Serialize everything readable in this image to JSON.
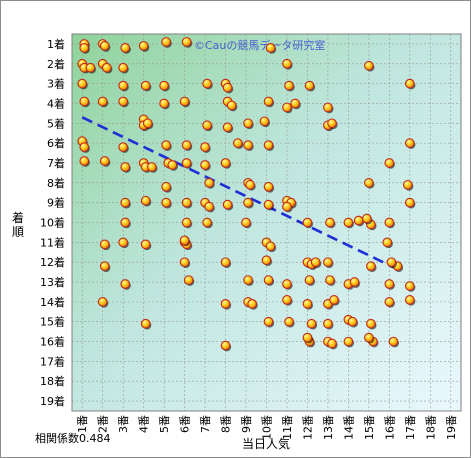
{
  "chart_data": {
    "type": "scatter",
    "title": "",
    "watermark": "©Cauの競馬データ研究室",
    "xlabel": "当日人気",
    "ylabel": "着順",
    "x_tick_labels": [
      "1番",
      "2番",
      "3番",
      "4番",
      "5番",
      "6番",
      "7番",
      "8番",
      "9番",
      "10番",
      "11番",
      "12番",
      "13番",
      "14番",
      "15番",
      "16番",
      "17番",
      "18番",
      "19番"
    ],
    "y_tick_labels": [
      "1着",
      "2着",
      "3着",
      "4着",
      "5着",
      "6着",
      "7着",
      "8着",
      "9着",
      "10着",
      "11着",
      "12着",
      "13着",
      "14着",
      "15着",
      "16着",
      "17着",
      "18着",
      "19着"
    ],
    "xlim": [
      0.5,
      19.5
    ],
    "ylim": [
      0.5,
      19.5
    ],
    "y_inverted": true,
    "grid": true,
    "background": "gradient green to light blue",
    "colors": {
      "marker_fill": "#ffd21a",
      "marker_edge": "#c0281a",
      "trend": "#1f2fd6",
      "grid": "#9a9a9a"
    },
    "correlation_label": "相関係数0.484",
    "trendline": {
      "x": [
        1.0,
        16.3
      ],
      "y": [
        4.7,
        12.3
      ]
    },
    "points": [
      [
        1.1,
        1.0
      ],
      [
        1.1,
        1.2
      ],
      [
        2.0,
        1.0
      ],
      [
        2.1,
        1.1
      ],
      [
        3.1,
        1.2
      ],
      [
        4.0,
        1.1
      ],
      [
        5.1,
        0.9
      ],
      [
        6.1,
        0.9
      ],
      [
        10.2,
        1.2
      ],
      [
        1.0,
        2.0
      ],
      [
        1.1,
        2.2
      ],
      [
        1.4,
        2.2
      ],
      [
        2.0,
        2.0
      ],
      [
        2.2,
        2.2
      ],
      [
        3.0,
        2.2
      ],
      [
        11.0,
        2.0
      ],
      [
        15.0,
        2.1
      ],
      [
        1.0,
        3.0
      ],
      [
        3.0,
        3.1
      ],
      [
        4.1,
        3.1
      ],
      [
        5.0,
        3.1
      ],
      [
        7.1,
        3.0
      ],
      [
        8.0,
        3.0
      ],
      [
        8.1,
        3.2
      ],
      [
        11.1,
        3.1
      ],
      [
        12.1,
        3.1
      ],
      [
        17.0,
        3.0
      ],
      [
        1.1,
        3.9
      ],
      [
        2.0,
        3.9
      ],
      [
        3.0,
        3.9
      ],
      [
        5.0,
        4.0
      ],
      [
        6.0,
        3.9
      ],
      [
        8.1,
        3.9
      ],
      [
        8.3,
        4.1
      ],
      [
        10.1,
        3.9
      ],
      [
        11.0,
        4.2
      ],
      [
        11.4,
        4.0
      ],
      [
        13.0,
        4.2
      ],
      [
        4.0,
        4.8
      ],
      [
        4.0,
        5.1
      ],
      [
        4.2,
        5.0
      ],
      [
        7.1,
        5.1
      ],
      [
        8.1,
        5.2
      ],
      [
        9.1,
        5.0
      ],
      [
        9.9,
        4.9
      ],
      [
        13.0,
        5.1
      ],
      [
        13.2,
        5.0
      ],
      [
        1.0,
        5.9
      ],
      [
        1.1,
        6.2
      ],
      [
        3.0,
        6.2
      ],
      [
        5.1,
        6.1
      ],
      [
        6.1,
        6.1
      ],
      [
        7.0,
        6.2
      ],
      [
        8.6,
        6.0
      ],
      [
        9.1,
        6.1
      ],
      [
        10.1,
        6.1
      ],
      [
        17.0,
        6.0
      ],
      [
        1.1,
        6.9
      ],
      [
        2.1,
        6.9
      ],
      [
        3.1,
        7.2
      ],
      [
        4.0,
        7.0
      ],
      [
        4.1,
        7.2
      ],
      [
        4.4,
        7.2
      ],
      [
        5.2,
        7.0
      ],
      [
        5.4,
        7.1
      ],
      [
        6.1,
        7.0
      ],
      [
        7.0,
        7.1
      ],
      [
        8.0,
        7.0
      ],
      [
        16.0,
        7.0
      ],
      [
        7.2,
        8.0
      ],
      [
        5.1,
        8.2
      ],
      [
        9.1,
        8.0
      ],
      [
        9.2,
        8.1
      ],
      [
        10.1,
        8.2
      ],
      [
        15.0,
        8.0
      ],
      [
        16.9,
        8.1
      ],
      [
        3.1,
        9.0
      ],
      [
        4.1,
        8.9
      ],
      [
        5.1,
        9.0
      ],
      [
        6.1,
        9.0
      ],
      [
        7.0,
        9.0
      ],
      [
        7.2,
        9.2
      ],
      [
        8.1,
        9.1
      ],
      [
        9.1,
        9.0
      ],
      [
        10.1,
        9.1
      ],
      [
        11.0,
        8.9
      ],
      [
        11.2,
        9.0
      ],
      [
        11.0,
        9.2
      ],
      [
        17.0,
        9.0
      ],
      [
        3.1,
        10.0
      ],
      [
        6.1,
        10.0
      ],
      [
        7.1,
        10.0
      ],
      [
        9.0,
        10.0
      ],
      [
        12.0,
        10.0
      ],
      [
        13.1,
        10.0
      ],
      [
        14.0,
        10.0
      ],
      [
        14.5,
        9.9
      ],
      [
        15.1,
        10.1
      ],
      [
        14.9,
        9.8
      ],
      [
        16.0,
        10.0
      ],
      [
        2.1,
        11.1
      ],
      [
        3.0,
        11.0
      ],
      [
        4.1,
        11.1
      ],
      [
        6.0,
        11.0
      ],
      [
        6.1,
        11.1
      ],
      [
        6.0,
        10.9
      ],
      [
        10.0,
        11.0
      ],
      [
        10.2,
        11.2
      ],
      [
        15.9,
        11.0
      ],
      [
        2.1,
        12.2
      ],
      [
        6.0,
        12.0
      ],
      [
        8.0,
        12.0
      ],
      [
        10.0,
        11.9
      ],
      [
        12.0,
        12.0
      ],
      [
        12.2,
        12.1
      ],
      [
        12.4,
        12.0
      ],
      [
        13.0,
        12.0
      ],
      [
        15.1,
        12.2
      ],
      [
        16.4,
        12.2
      ],
      [
        16.1,
        12.0
      ],
      [
        3.1,
        13.1
      ],
      [
        6.2,
        12.9
      ],
      [
        9.1,
        12.9
      ],
      [
        10.1,
        12.9
      ],
      [
        11.0,
        13.1
      ],
      [
        12.1,
        12.9
      ],
      [
        13.1,
        12.9
      ],
      [
        14.0,
        13.1
      ],
      [
        14.3,
        13.0
      ],
      [
        16.0,
        13.1
      ],
      [
        17.0,
        13.2
      ],
      [
        2.0,
        14.0
      ],
      [
        8.0,
        14.1
      ],
      [
        9.1,
        14.0
      ],
      [
        9.3,
        14.1
      ],
      [
        11.0,
        13.9
      ],
      [
        12.0,
        14.1
      ],
      [
        13.0,
        14.1
      ],
      [
        13.3,
        13.9
      ],
      [
        16.0,
        14.0
      ],
      [
        17.0,
        13.9
      ],
      [
        4.1,
        15.1
      ],
      [
        10.1,
        15.0
      ],
      [
        11.1,
        15.0
      ],
      [
        12.2,
        15.1
      ],
      [
        13.0,
        15.1
      ],
      [
        14.0,
        14.9
      ],
      [
        14.2,
        15.0
      ],
      [
        15.1,
        15.1
      ],
      [
        8.0,
        16.2
      ],
      [
        12.1,
        16.0
      ],
      [
        13.0,
        16.0
      ],
      [
        13.2,
        16.1
      ],
      [
        14.0,
        16.0
      ],
      [
        15.2,
        16.0
      ],
      [
        15.0,
        15.8
      ],
      [
        16.2,
        16.0
      ],
      [
        12.0,
        15.8
      ]
    ]
  }
}
